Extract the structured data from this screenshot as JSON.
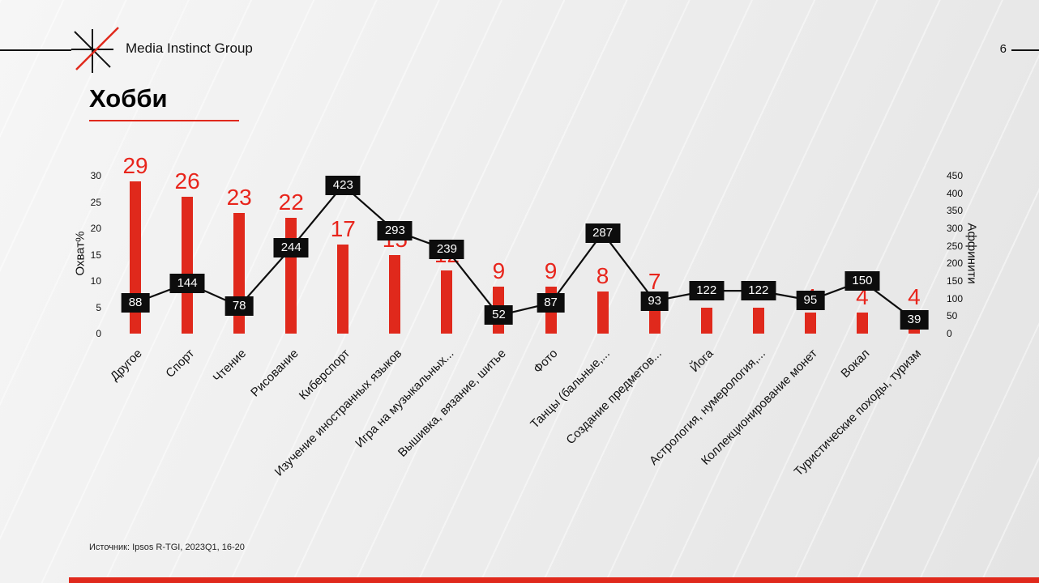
{
  "header": {
    "brand": "Media Instinct Group",
    "page_number": "6"
  },
  "title": "Хобби",
  "source": "Источник: Ipsos R-TGI, 2023Q1, 16-20",
  "colors": {
    "accent_red": "#e0291c",
    "bar": "#e0291c",
    "line": "#0d0d0d",
    "point_label_bg": "#0d0d0d",
    "point_label_text": "#ffffff",
    "bar_value_text": "#e8251c"
  },
  "chart_data": {
    "type": "bar",
    "subtype": "bar+line combo, dual axis",
    "categories": [
      "Другое",
      "Спорт",
      "Чтение",
      "Рисование",
      "Киберспорт",
      "Изучение иностранных языков",
      "Игра на музыкальных...",
      "Вышивка, вязание, шитье",
      "Фото",
      "Танцы (бальные,...",
      "Создание предметов...",
      "Йога",
      "Астрология, нумерология,...",
      "Коллекционирование монет",
      "Вокал",
      "Туристические походы, туризм"
    ],
    "series": [
      {
        "name": "Охват%",
        "type": "bar",
        "axis": "left",
        "color": "#e0291c",
        "values": [
          29,
          26,
          23,
          22,
          17,
          15,
          12,
          9,
          9,
          8,
          7,
          5,
          5,
          4,
          4,
          4
        ]
      },
      {
        "name": "Аффинити",
        "type": "line",
        "axis": "right",
        "color": "#0d0d0d",
        "values": [
          88,
          144,
          78,
          244,
          423,
          293,
          239,
          52,
          87,
          287,
          93,
          122,
          122,
          95,
          150,
          39
        ]
      }
    ],
    "left_axis": {
      "label": "Охват%",
      "min": 0,
      "max": 30,
      "ticks": [
        0,
        5,
        10,
        15,
        20,
        25,
        30
      ]
    },
    "right_axis": {
      "label": "Аффинити",
      "min": 0,
      "max": 450,
      "ticks": [
        0,
        50,
        100,
        150,
        200,
        250,
        300,
        350,
        400,
        450
      ]
    },
    "grid": false,
    "legend": "none",
    "data_labels": "bar values in red above bars; line values in black boxes on points"
  }
}
